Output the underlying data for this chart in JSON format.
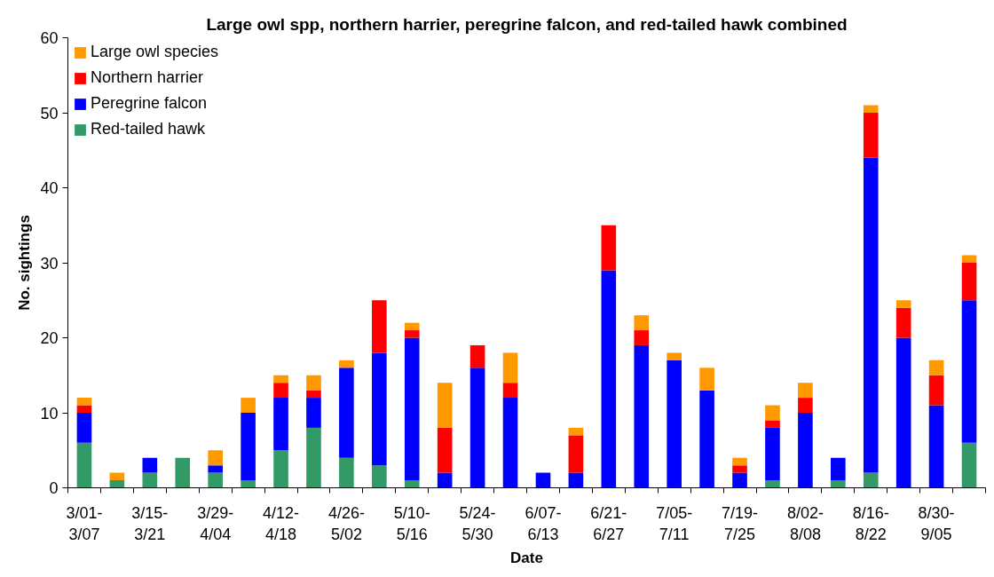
{
  "chart_data": {
    "type": "bar",
    "stacked": true,
    "title": "Large owl spp, northern harrier, peregrine falcon, and red-tailed hawk combined",
    "xlabel": "Date",
    "ylabel": "No. sightings",
    "categories": [
      "3/01-3/07",
      null,
      "3/15-3/21",
      null,
      "3/29-4/04",
      null,
      "4/12-4/18",
      null,
      "4/26-5/02",
      null,
      "5/10-5/16",
      null,
      "5/24-5/30",
      null,
      "6/07-6/13",
      null,
      "6/21-6/27",
      null,
      "7/05-7/11",
      null,
      "7/19-7/25",
      null,
      "8/02-8/08",
      null,
      "8/16-8/22",
      null,
      "8/30-9/05",
      null
    ],
    "series": [
      {
        "name": "Red-tailed hawk",
        "color": "#339966",
        "values": [
          6,
          1,
          2,
          4,
          2,
          1,
          5,
          8,
          4,
          3,
          1,
          0,
          0,
          0,
          0,
          0,
          0,
          0,
          0,
          0,
          0,
          1,
          0,
          1,
          2,
          0,
          0,
          6
        ]
      },
      {
        "name": "Peregrine falcon",
        "color": "#0000ff",
        "values": [
          4,
          0,
          2,
          0,
          1,
          9,
          7,
          4,
          12,
          15,
          19,
          2,
          16,
          12,
          2,
          2,
          29,
          19,
          17,
          13,
          2,
          7,
          10,
          3,
          42,
          20,
          11,
          19
        ]
      },
      {
        "name": "Northern harrier",
        "color": "#ff0000",
        "values": [
          1,
          0,
          0,
          0,
          0,
          0,
          2,
          1,
          0,
          7,
          1,
          6,
          3,
          2,
          0,
          5,
          6,
          2,
          0,
          0,
          1,
          1,
          2,
          0,
          6,
          4,
          4,
          5
        ]
      },
      {
        "name": "Large owl species",
        "color": "#ff9900",
        "values": [
          1,
          1,
          0,
          0,
          2,
          2,
          1,
          2,
          1,
          0,
          1,
          6,
          0,
          4,
          0,
          1,
          0,
          2,
          1,
          3,
          1,
          2,
          2,
          0,
          1,
          1,
          2,
          1
        ]
      }
    ],
    "ylim": [
      0,
      60
    ],
    "yticks": [
      0,
      10,
      20,
      30,
      40,
      50,
      60
    ],
    "legend": "top left"
  }
}
